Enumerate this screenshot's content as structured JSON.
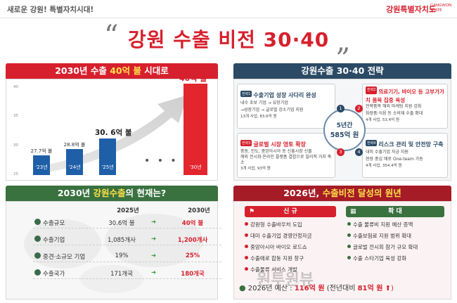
{
  "header": {
    "slogan": "새로운 강원! 특별자치시대!",
    "logo_ko": "강원특별자치도",
    "logo_en": "GANGWON STATE",
    "title": "강원 수출 비전 30·40"
  },
  "vision_panel": {
    "title_prefix": "2030년 수출 ",
    "title_highlight": "40억 불",
    "title_suffix": " 시대로",
    "chart_data": {
      "type": "bar",
      "categories": [
        "'23년",
        "'24년",
        "'25년",
        "'30년"
      ],
      "value_labels": [
        "27.7억 불",
        "28.8억 불",
        "30. 6억 불",
        "40억 불"
      ],
      "values": [
        27.7,
        28.8,
        30.6,
        40
      ],
      "yticks": [
        "40",
        "35",
        "30",
        "25"
      ],
      "ylim": [
        25,
        40
      ],
      "ellipsis": "• • •"
    }
  },
  "strategy_panel": {
    "title": "강원수출 30·40 전략",
    "center_line1": "5년간",
    "center_line2": "585억 원",
    "items": [
      {
        "num": "1",
        "tag": "전략1",
        "title": "수출기업 성장 사다리 완성",
        "lines": [
          "내수 초보 기업 → 유망기업",
          "→성장기업 → 글로벌 강소기업 지원"
        ],
        "sub": "13개 사업, 83.6억 원"
      },
      {
        "num": "2",
        "tag": "전략2",
        "title": "의료기기, 바이오 등 고부가가치 품목 집중 육성",
        "lines": [
          "전략품목 해외 마케팅 지원 강화",
          "화장품·식음 등 소비재 수출 확대"
        ],
        "sub": "4개 사업, 53.4억 원"
      },
      {
        "num": "3",
        "tag": "전략3",
        "title": "글로벌 시장 영토 확장",
        "lines": [
          "중동, 인도, 중앙아시아 등 신흥시장 신출",
          "해외 전시회·온라인 플랫폼 결합으로 빌리적 거지 축소"
        ],
        "sub": "3개 사업, 93억 원"
      },
      {
        "num": "4",
        "tag": "전략4",
        "title": "리스크 관리 및 안전망 구축",
        "lines": [
          "대미 수출기업 자금 지원",
          "현장 중심 애로 One-team 가동"
        ],
        "sub": "4개 사업, 354.4억 원"
      }
    ]
  },
  "status_panel": {
    "title_prefix": "2030년 ",
    "title_highlight": "강원수출",
    "title_suffix": "의 현재는?",
    "col_2025": "2025년",
    "col_2030": "2030년",
    "arrow": "➜",
    "rows": [
      {
        "label": "수출규모",
        "v2025": "30.6억 불",
        "v2030": "40억 불"
      },
      {
        "label": "수출기업",
        "v2025": "1,085개사",
        "v2030": "1,200개사"
      },
      {
        "label": "중견·소규모 기업",
        "v2025": "19%",
        "v2030": "25%"
      },
      {
        "label": "수출국가",
        "v2025": "171개국",
        "v2030": "180개국"
      }
    ]
  },
  "achievement_panel": {
    "title_prefix": "2026년, ",
    "title_highlight": "수출비전 달성의 원년",
    "new_head": "신 규",
    "expand_head": "확 대",
    "new_items": [
      "강원형 수출바우처 도입",
      "대미 수출기업 경영안정자금",
      "중앙아시아 바이오 로드쇼",
      "수출애로 합동 지원 창구",
      "수출물류 서비스 개발"
    ],
    "expand_items": [
      "수출 물류비 지원 예산 증액",
      "수출보험료 지원 범위 확대",
      "글로벌 전시회 참가 규모 확대",
      "수출 스타기업 육성 강화"
    ],
    "budget_prefix": "2026년 예산 : ",
    "budget_value": "116억 원",
    "budget_mid": " (전년대비 ",
    "budget_change": "81억 원",
    "budget_suffix": " ⬆)"
  },
  "watermark": "원투원뷰",
  "colors": {
    "accent_red": "#d7202d",
    "navy": "#2b4a66",
    "green": "#39713f"
  }
}
